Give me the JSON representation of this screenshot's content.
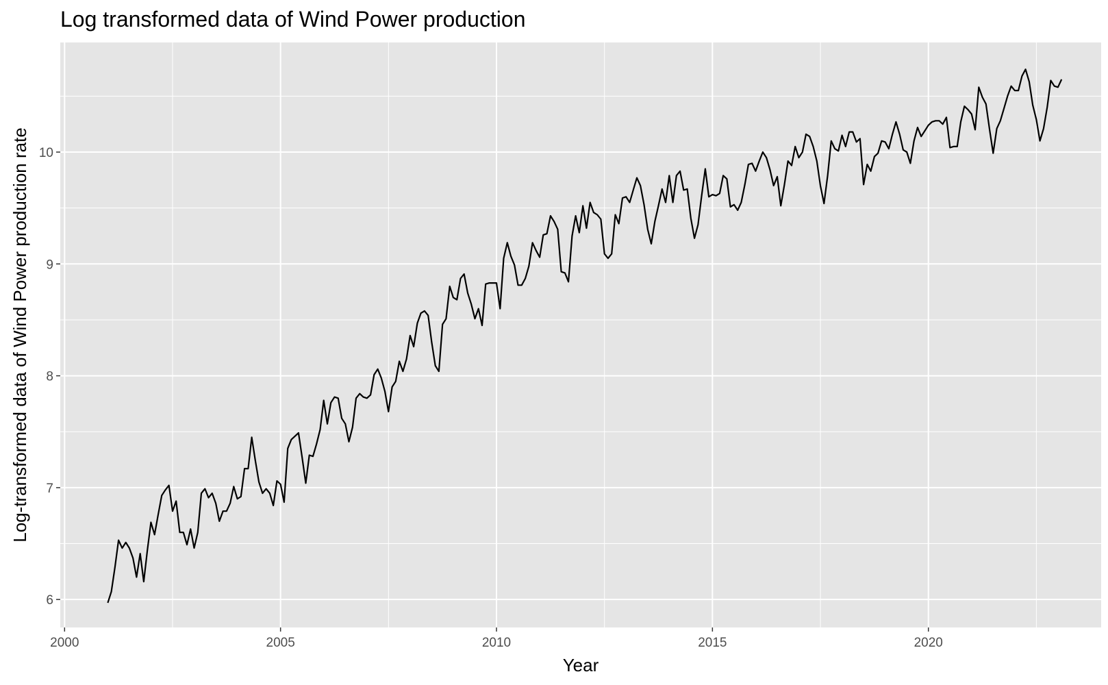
{
  "chart_data": {
    "type": "line",
    "title": "Log transformed data of Wind Power production",
    "xlabel": "Year",
    "ylabel": "Log-transformed data of Wind Power production rate",
    "xlim": [
      1999.9,
      2024.0
    ],
    "ylim": [
      5.75,
      10.98
    ],
    "x_ticks": [
      2000,
      2005,
      2010,
      2015,
      2020
    ],
    "x_tick_labels": [
      "2000",
      "2005",
      "2010",
      "2015",
      "2020"
    ],
    "y_ticks": [
      6,
      7,
      8,
      9,
      10
    ],
    "y_tick_labels": [
      "6",
      "7",
      "8",
      "9",
      "10"
    ],
    "grid": true,
    "background": "#e5e5e5",
    "grid_color": "#ffffff",
    "line_color": "#000000",
    "series": [
      {
        "x_start": 2001.0,
        "step": 0.0833333,
        "values": [
          5.97,
          6.07,
          6.29,
          6.53,
          6.46,
          6.51,
          6.46,
          6.37,
          6.2,
          6.41,
          6.16,
          6.44,
          6.69,
          6.58,
          6.76,
          6.93,
          6.98,
          7.02,
          6.79,
          6.88,
          6.6,
          6.6,
          6.49,
          6.63,
          6.46,
          6.6,
          6.95,
          6.99,
          6.91,
          6.95,
          6.86,
          6.7,
          6.79,
          6.79,
          6.86,
          7.01,
          6.9,
          6.92,
          7.17,
          7.17,
          7.45,
          7.24,
          7.05,
          6.95,
          6.99,
          6.95,
          6.84,
          7.06,
          7.03,
          6.87,
          7.35,
          7.43,
          7.46,
          7.49,
          7.27,
          7.04,
          7.29,
          7.28,
          7.39,
          7.52,
          7.78,
          7.57,
          7.76,
          7.81,
          7.8,
          7.62,
          7.57,
          7.41,
          7.54,
          7.8,
          7.84,
          7.81,
          7.8,
          7.83,
          8.01,
          8.06,
          7.98,
          7.86,
          7.68,
          7.9,
          7.95,
          8.13,
          8.04,
          8.15,
          8.36,
          8.26,
          8.47,
          8.56,
          8.58,
          8.54,
          8.3,
          8.09,
          8.04,
          8.46,
          8.51,
          8.8,
          8.7,
          8.68,
          8.87,
          8.91,
          8.74,
          8.64,
          8.51,
          8.6,
          8.45,
          8.82,
          8.83,
          8.83,
          8.83,
          8.6,
          9.05,
          9.19,
          9.07,
          8.99,
          8.81,
          8.81,
          8.87,
          8.98,
          9.19,
          9.12,
          9.06,
          9.26,
          9.27,
          9.43,
          9.38,
          9.31,
          8.93,
          8.92,
          8.84,
          9.25,
          9.43,
          9.28,
          9.52,
          9.32,
          9.55,
          9.46,
          9.44,
          9.4,
          9.09,
          9.05,
          9.09,
          9.44,
          9.36,
          9.59,
          9.6,
          9.55,
          9.66,
          9.77,
          9.7,
          9.53,
          9.31,
          9.18,
          9.38,
          9.52,
          9.67,
          9.55,
          9.79,
          9.55,
          9.79,
          9.83,
          9.66,
          9.67,
          9.41,
          9.23,
          9.35,
          9.61,
          9.85,
          9.6,
          9.62,
          9.61,
          9.63,
          9.79,
          9.76,
          9.51,
          9.53,
          9.48,
          9.55,
          9.71,
          9.89,
          9.9,
          9.83,
          9.92,
          10.0,
          9.95,
          9.84,
          9.7,
          9.78,
          9.52,
          9.71,
          9.92,
          9.88,
          10.05,
          9.95,
          10.0,
          10.16,
          10.14,
          10.05,
          9.92,
          9.7,
          9.54,
          9.79,
          10.1,
          10.03,
          10.01,
          10.15,
          10.05,
          10.18,
          10.18,
          10.09,
          10.12,
          9.71,
          9.89,
          9.83,
          9.96,
          9.99,
          10.1,
          10.09,
          10.03,
          10.16,
          10.27,
          10.16,
          10.02,
          10.0,
          9.9,
          10.1,
          10.22,
          10.14,
          10.19,
          10.24,
          10.27,
          10.28,
          10.28,
          10.25,
          10.31,
          10.04,
          10.05,
          10.05,
          10.27,
          10.41,
          10.38,
          10.34,
          10.2,
          10.58,
          10.49,
          10.43,
          10.2,
          9.99,
          10.21,
          10.28,
          10.39,
          10.5,
          10.59,
          10.55,
          10.55,
          10.68,
          10.74,
          10.63,
          10.42,
          10.29,
          10.1,
          10.21,
          10.4,
          10.64,
          10.59,
          10.58,
          10.65
        ]
      }
    ]
  }
}
